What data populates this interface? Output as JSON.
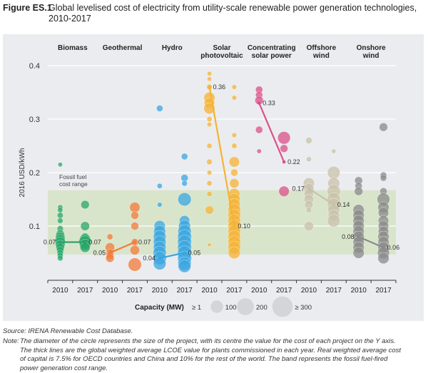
{
  "figure": {
    "number": "Figure ES.1",
    "title": "Global levelised cost of electricity from utility-scale renewable power generation technologies, 2010-2017"
  },
  "source": "Source: IRENA Renewable Cost Database.",
  "note": {
    "label": "Note:",
    "text": "The diameter of the circle represents the size of the project, with its centre the value for the cost of each project on the Y axis. The thick lines are the global weighted average LCOE value for plants commissioned in each year. Real weighted average cost of capital is 7.5% for OECD countries and China and 10% for the rest of the world. The band represents the fossil fuel-fired power generation cost range."
  },
  "chart_data": {
    "type": "scatter",
    "title": "Global levelised cost of electricity from utility-scale renewable power generation technologies, 2010-2017",
    "ylabel": "2016 USD/kWh",
    "xlabel": "",
    "ylim": [
      0,
      0.4
    ],
    "yticks": [
      0.1,
      0.2,
      0.3,
      0.4
    ],
    "ytick_labels": [
      "0.1",
      "0.2",
      "0.3",
      "0.4"
    ],
    "grid": true,
    "band": {
      "label_line1": "Fossil fuel",
      "label_line2": "cost range",
      "low": 0.047,
      "high": 0.167,
      "color": "#d6e4c4"
    },
    "legend": {
      "title": "Capacity (MW)",
      "entries": [
        {
          "label": "≥ 1",
          "mw": 1
        },
        {
          "label": "100",
          "mw": 100
        },
        {
          "label": "200",
          "mw": 200
        },
        {
          "label": "≥ 300",
          "mw": 300
        }
      ],
      "placement": "bottom"
    },
    "technologies": [
      {
        "name": "Biomass",
        "label_lines": [
          "Biomass"
        ],
        "color": "#2aa56a",
        "avg_2010": 0.07,
        "avg_2017": 0.07,
        "avg_2010_label": "0.07",
        "avg_2017_label": "0.07",
        "points_2010": [
          [
            0.215,
            5
          ],
          [
            0.135,
            8
          ],
          [
            0.13,
            8
          ],
          [
            0.12,
            12
          ],
          [
            0.11,
            10
          ],
          [
            0.095,
            14
          ],
          [
            0.085,
            30
          ],
          [
            0.08,
            40
          ],
          [
            0.075,
            45
          ],
          [
            0.07,
            50
          ],
          [
            0.065,
            40
          ],
          [
            0.06,
            30
          ],
          [
            0.055,
            20
          ],
          [
            0.05,
            14
          ],
          [
            0.045,
            12
          ],
          [
            0.04,
            10
          ]
        ],
        "points_2017": [
          [
            0.14,
            30
          ],
          [
            0.1,
            35
          ],
          [
            0.08,
            25
          ],
          [
            0.075,
            60
          ],
          [
            0.07,
            80
          ],
          [
            0.065,
            60
          ],
          [
            0.06,
            45
          ]
        ]
      },
      {
        "name": "Geothermal",
        "label_lines": [
          "Geothermal"
        ],
        "color": "#f07b3a",
        "avg_2010": 0.05,
        "avg_2017": 0.07,
        "avg_2010_label": "0.05",
        "avg_2017_label": "0.07",
        "points_2010": [
          [
            0.08,
            12
          ],
          [
            0.06,
            40
          ],
          [
            0.05,
            25
          ],
          [
            0.045,
            25
          ],
          [
            0.04,
            30
          ]
        ],
        "points_2017": [
          [
            0.135,
            50
          ],
          [
            0.12,
            25
          ],
          [
            0.1,
            25
          ],
          [
            0.07,
            20
          ],
          [
            0.055,
            40
          ],
          [
            0.028,
            90
          ]
        ]
      },
      {
        "name": "Hydro",
        "label_lines": [
          "Hydro"
        ],
        "color": "#3aa6e0",
        "avg_2010": 0.04,
        "avg_2017": 0.05,
        "avg_2010_label": "0.04",
        "avg_2017_label": "0.05",
        "points_2010": [
          [
            0.32,
            15
          ],
          [
            0.175,
            8
          ],
          [
            0.14,
            6
          ],
          [
            0.1,
            60
          ],
          [
            0.09,
            70
          ],
          [
            0.08,
            80
          ],
          [
            0.07,
            80
          ],
          [
            0.06,
            80
          ],
          [
            0.05,
            90
          ],
          [
            0.04,
            90
          ],
          [
            0.03,
            80
          ]
        ],
        "points_2017": [
          [
            0.23,
            15
          ],
          [
            0.19,
            20
          ],
          [
            0.18,
            10
          ],
          [
            0.15,
            90
          ],
          [
            0.11,
            50
          ],
          [
            0.1,
            70
          ],
          [
            0.09,
            90
          ],
          [
            0.08,
            100
          ],
          [
            0.07,
            100
          ],
          [
            0.06,
            100
          ],
          [
            0.05,
            100
          ],
          [
            0.04,
            100
          ],
          [
            0.03,
            90
          ],
          [
            0.025,
            80
          ]
        ]
      },
      {
        "name": "Solar photovoltaic",
        "label_lines": [
          "Solar",
          "photovoltaic"
        ],
        "color": "#f5b335",
        "avg_2010": 0.36,
        "avg_2017": 0.1,
        "avg_2010_label": "0.36",
        "avg_2017_label": "0.10",
        "points_2010": [
          [
            0.385,
            5
          ],
          [
            0.375,
            5
          ],
          [
            0.36,
            10
          ],
          [
            0.34,
            60
          ],
          [
            0.33,
            50
          ],
          [
            0.32,
            60
          ],
          [
            0.3,
            8
          ],
          [
            0.29,
            6
          ],
          [
            0.25,
            8
          ],
          [
            0.22,
            10
          ],
          [
            0.2,
            6
          ],
          [
            0.18,
            8
          ],
          [
            0.16,
            8
          ],
          [
            0.13,
            30
          ],
          [
            0.065,
            3
          ]
        ],
        "points_2017": [
          [
            0.36,
            6
          ],
          [
            0.34,
            6
          ],
          [
            0.27,
            6
          ],
          [
            0.25,
            8
          ],
          [
            0.22,
            50
          ],
          [
            0.2,
            20
          ],
          [
            0.18,
            40
          ],
          [
            0.16,
            60
          ],
          [
            0.15,
            70
          ],
          [
            0.14,
            70
          ],
          [
            0.13,
            80
          ],
          [
            0.12,
            80
          ],
          [
            0.11,
            80
          ],
          [
            0.1,
            80
          ],
          [
            0.09,
            80
          ],
          [
            0.08,
            80
          ],
          [
            0.07,
            80
          ],
          [
            0.06,
            80
          ],
          [
            0.05,
            70
          ]
        ]
      },
      {
        "name": "Concentrating solar power",
        "label_lines": [
          "Concentrating",
          "solar power"
        ],
        "color": "#d9508a",
        "avg_2010": 0.33,
        "avg_2017": 0.22,
        "avg_2010_label": "0.33",
        "avg_2017_label": "0.22",
        "points_2010": [
          [
            0.355,
            20
          ],
          [
            0.345,
            20
          ],
          [
            0.335,
            30
          ],
          [
            0.28,
            20
          ],
          [
            0.24,
            5
          ]
        ],
        "points_2017": [
          [
            0.265,
            80
          ],
          [
            0.245,
            25
          ],
          [
            0.165,
            50
          ]
        ]
      },
      {
        "name": "Offshore wind",
        "label_lines": [
          "Offshore",
          "wind"
        ],
        "color": "#c8c1aa",
        "avg_2010": 0.17,
        "avg_2017": 0.14,
        "avg_2010_label": "0.17",
        "avg_2017_label": "0.14",
        "points_2010": [
          [
            0.26,
            15
          ],
          [
            0.225,
            8
          ],
          [
            0.18,
            60
          ],
          [
            0.17,
            50
          ],
          [
            0.16,
            40
          ],
          [
            0.15,
            40
          ],
          [
            0.14,
            30
          ],
          [
            0.13,
            10
          ],
          [
            0.1,
            40
          ]
        ],
        "points_2017": [
          [
            0.24,
            5
          ],
          [
            0.2,
            80
          ],
          [
            0.18,
            70
          ],
          [
            0.165,
            90
          ],
          [
            0.15,
            90
          ],
          [
            0.14,
            80
          ],
          [
            0.13,
            70
          ],
          [
            0.12,
            60
          ],
          [
            0.11,
            80
          ]
        ]
      },
      {
        "name": "Onshore wind",
        "label_lines": [
          "Onshore",
          "wind"
        ],
        "color": "#8a8a8a",
        "avg_2010": 0.08,
        "avg_2017": 0.06,
        "avg_2010_label": "0.08",
        "avg_2017_label": "0.06",
        "points_2010": [
          [
            0.185,
            25
          ],
          [
            0.175,
            20
          ],
          [
            0.165,
            30
          ],
          [
            0.13,
            60
          ],
          [
            0.12,
            60
          ],
          [
            0.11,
            60
          ],
          [
            0.1,
            60
          ],
          [
            0.09,
            60
          ],
          [
            0.08,
            60
          ],
          [
            0.07,
            60
          ],
          [
            0.06,
            60
          ],
          [
            0.05,
            60
          ]
        ],
        "points_2017": [
          [
            0.285,
            30
          ],
          [
            0.195,
            15
          ],
          [
            0.19,
            15
          ],
          [
            0.165,
            20
          ],
          [
            0.15,
            80
          ],
          [
            0.135,
            60
          ],
          [
            0.125,
            50
          ],
          [
            0.11,
            50
          ],
          [
            0.1,
            50
          ],
          [
            0.09,
            50
          ],
          [
            0.08,
            60
          ],
          [
            0.07,
            60
          ],
          [
            0.06,
            60
          ],
          [
            0.05,
            70
          ],
          [
            0.04,
            60
          ]
        ]
      }
    ],
    "years": [
      "2010",
      "2017"
    ]
  }
}
